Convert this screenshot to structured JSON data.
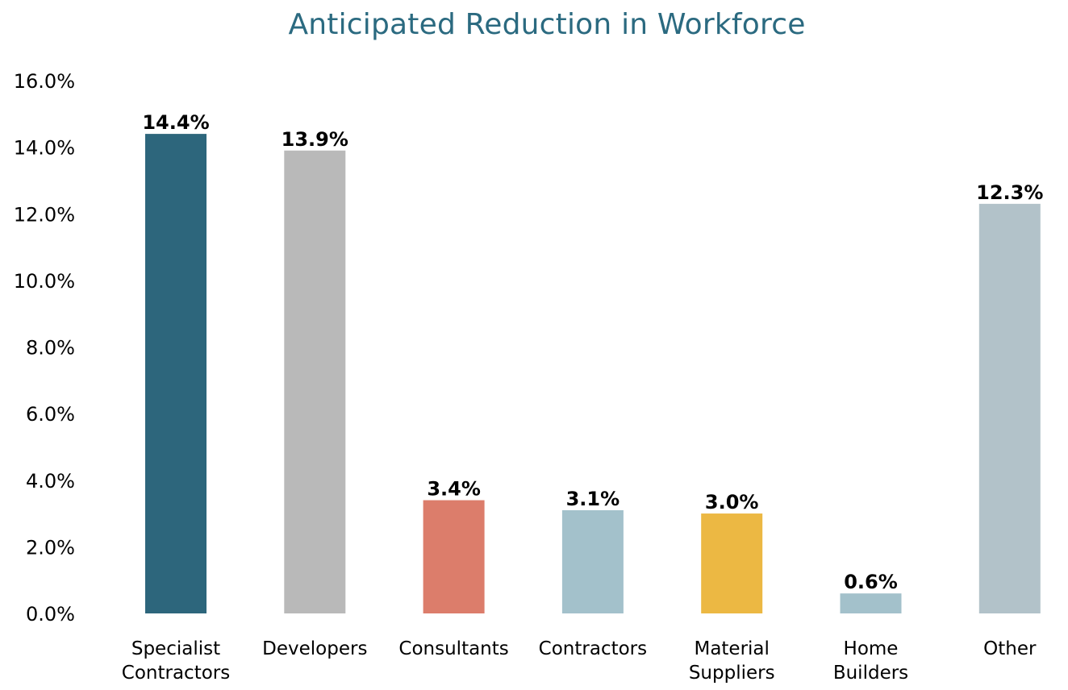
{
  "chart_data": {
    "type": "bar",
    "title": "Anticipated Reduction in Workforce",
    "xlabel": "",
    "ylabel": "",
    "categories": [
      [
        "Specialist",
        "Contractors"
      ],
      [
        "Developers"
      ],
      [
        "Consultants"
      ],
      [
        "Contractors"
      ],
      [
        "Material",
        "Suppliers"
      ],
      [
        "Home",
        "Builders"
      ],
      [
        "Other"
      ]
    ],
    "values": [
      14.4,
      13.9,
      3.4,
      3.1,
      3.0,
      0.6,
      12.3
    ],
    "data_labels": [
      "14.4%",
      "13.9%",
      "3.4%",
      "3.1%",
      "3.0%",
      "0.6%",
      "12.3%"
    ],
    "colors": [
      "#2d667c",
      "#b9b9b9",
      "#dc7d6b",
      "#a3c1cb",
      "#ecb843",
      "#a3c1cb",
      "#b2c2c9"
    ],
    "ylim": [
      0,
      16
    ],
    "yticks": [
      0,
      2,
      4,
      6,
      8,
      10,
      12,
      14,
      16
    ],
    "ytick_labels": [
      "0.0%",
      "2.0%",
      "4.0%",
      "6.0%",
      "8.0%",
      "10.0%",
      "12.0%",
      "14.0%",
      "16.0%"
    ],
    "grid": false,
    "legend": "none"
  }
}
